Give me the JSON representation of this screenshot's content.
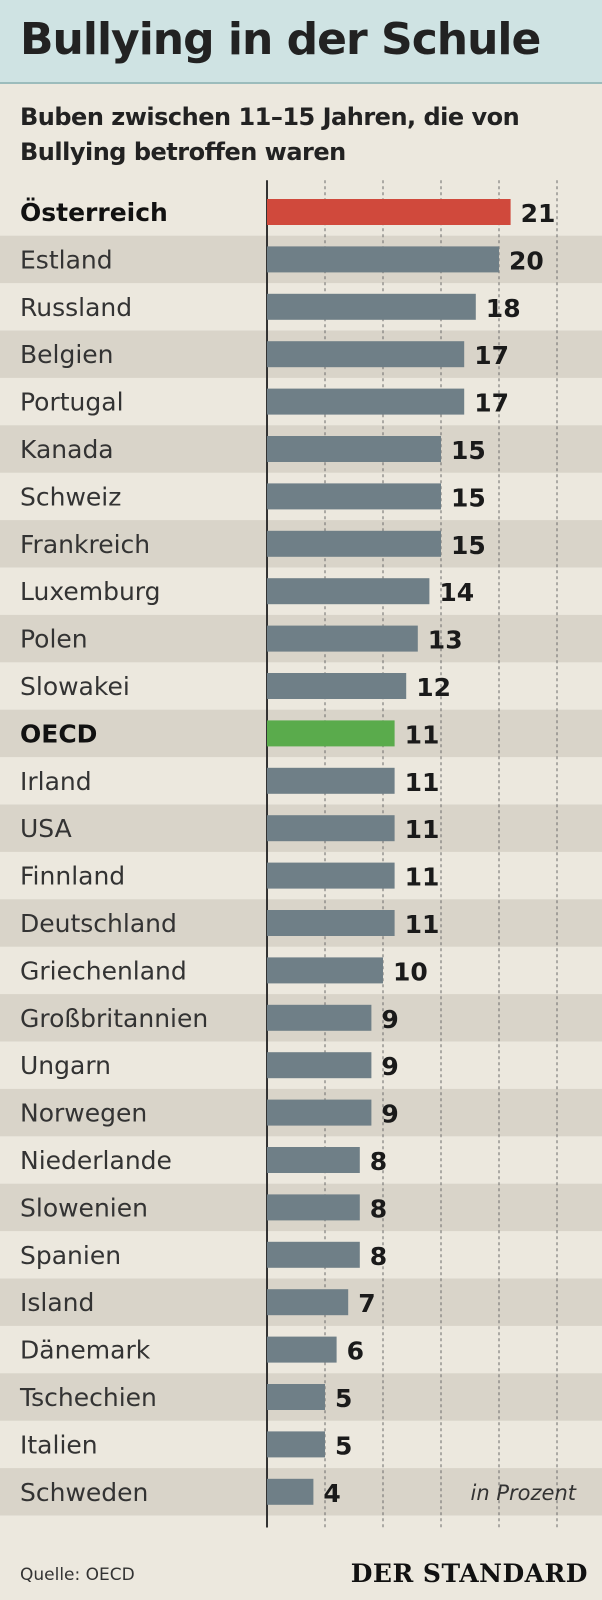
{
  "title": "Bullying in der Schule",
  "subtitle": "Buben zwischen 11–15 Jahren, die von Bullying betroffen waren",
  "unit_note": "in Prozent",
  "source": "Quelle: OECD",
  "brand": "DER STANDARD",
  "colors": {
    "default_bar": "#6f7f87",
    "highlight_austria": "#d0493c",
    "highlight_oecd": "#5aab4c",
    "stripe": "#d9d4c9",
    "background": "#ece8de",
    "header": "#cfe3e3"
  },
  "chart_data": {
    "type": "bar",
    "orientation": "horizontal",
    "categories": [
      "Österreich",
      "Estland",
      "Russland",
      "Belgien",
      "Portugal",
      "Kanada",
      "Schweiz",
      "Frankreich",
      "Luxemburg",
      "Polen",
      "Slowakei",
      "OECD",
      "Irland",
      "USA",
      "Finnland",
      "Deutschland",
      "Griechenland",
      "Großbritannien",
      "Ungarn",
      "Norwegen",
      "Niederlande",
      "Slowenien",
      "Spanien",
      "Island",
      "Dänemark",
      "Tschechien",
      "Italien",
      "Schweden"
    ],
    "values": [
      21,
      20,
      18,
      17,
      17,
      15,
      15,
      15,
      14,
      13,
      12,
      11,
      11,
      11,
      11,
      11,
      10,
      9,
      9,
      9,
      8,
      8,
      8,
      7,
      6,
      5,
      5,
      4
    ],
    "highlight": {
      "Österreich": "highlight_austria",
      "OECD": "highlight_oecd"
    },
    "bold_categories": [
      "Österreich",
      "OECD"
    ],
    "xlim": [
      0,
      25
    ],
    "grid_step": 5,
    "grid": true,
    "xlabel": "",
    "ylabel": ""
  }
}
